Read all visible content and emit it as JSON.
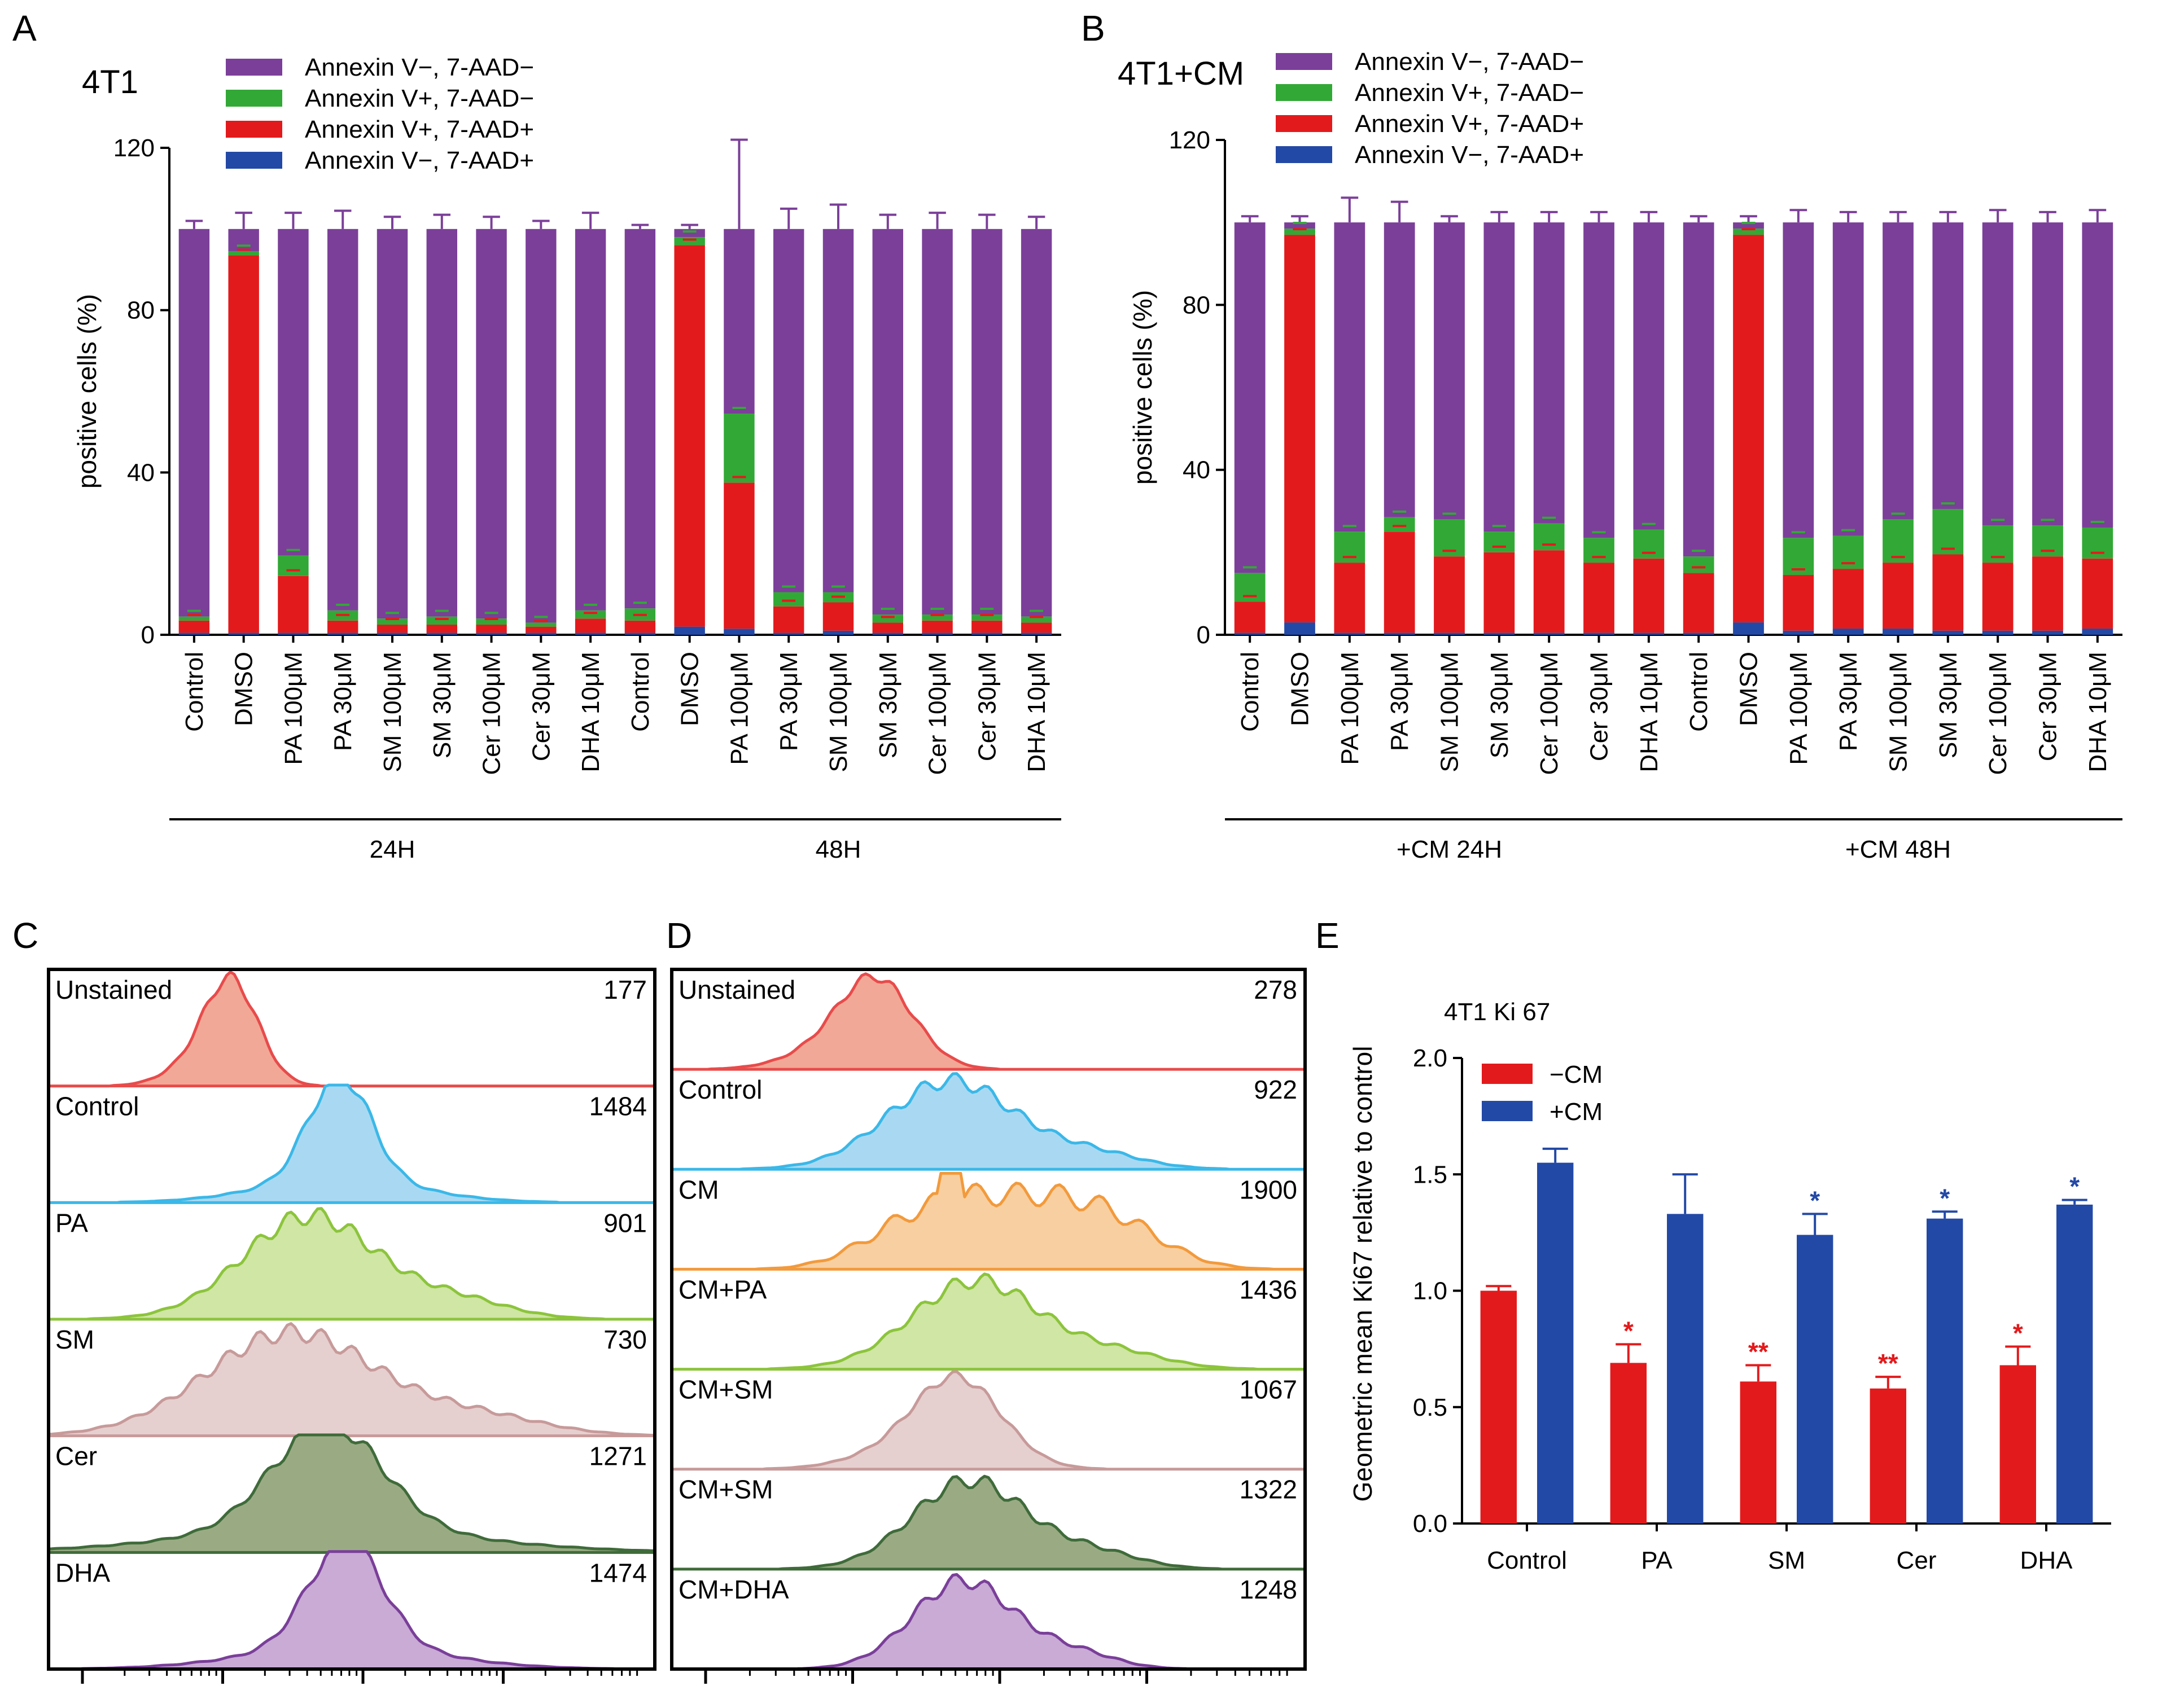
{
  "colors": {
    "live": "#7b3f99",
    "early": "#32a836",
    "late": "#e31a1c",
    "necrotic": "#2349a6",
    "minus_cm": "#e31a1c",
    "plus_cm": "#2349a6"
  },
  "panel_a": {
    "letter": "A",
    "title": "4T1"
  },
  "panel_b": {
    "letter": "B",
    "title": "4T1+CM"
  },
  "panel_c": {
    "letter": "C"
  },
  "panel_d": {
    "letter": "D"
  },
  "panel_e": {
    "letter": "E",
    "title": "4T1 Ki 67"
  },
  "chart_data": [
    {
      "id": "A",
      "type": "bar",
      "stacked": true,
      "title": "4T1",
      "ylabel": "positive cells (%)",
      "ylim": [
        0,
        120
      ],
      "yticks": [
        0,
        40,
        80,
        120
      ],
      "legend_position": "top",
      "legend": [
        "Annexin V−, 7-AAD−",
        "Annexin V+, 7-AAD−",
        "Annexin V+, 7-AAD+",
        "Annexin V−, 7-AAD+"
      ],
      "categories": [
        "Control",
        "DMSO",
        "PA 100μM",
        "PA 30μM",
        "SM 100μM",
        "SM 30μM",
        "Cer 100μM",
        "Cer 30μM",
        "DHA 10μM",
        "Control",
        "DMSO",
        "PA 100μM",
        "PA 30μM",
        "SM 100μM",
        "SM 30μM",
        "Cer 100μM",
        "Cer 30μM",
        "DHA 10μM"
      ],
      "groups": [
        {
          "label": "24H",
          "start": 0,
          "end": 8
        },
        {
          "label": "48H",
          "start": 9,
          "end": 17
        }
      ],
      "series": [
        {
          "name": "Annexin V−, 7-AAD+",
          "values": [
            0.5,
            0.5,
            0.5,
            0.5,
            0.5,
            0.5,
            0.5,
            0.5,
            0.5,
            0.5,
            2,
            1.5,
            0.5,
            1,
            0.5,
            0.5,
            0.5,
            0.5
          ]
        },
        {
          "name": "Annexin V+, 7-AAD+",
          "values": [
            3,
            93,
            14,
            3,
            2,
            2,
            2,
            1.5,
            3.5,
            3,
            94,
            36,
            6.5,
            7,
            2.5,
            3,
            3,
            2.5
          ]
        },
        {
          "name": "Annexin V+, 7-AAD−",
          "values": [
            1,
            1,
            5,
            2.5,
            1.5,
            2,
            1.5,
            1,
            2,
            3,
            2,
            17,
            3.5,
            2.5,
            2,
            1.5,
            1.5,
            1.5
          ]
        },
        {
          "name": "Annexin V−, 7-AAD−",
          "values": [
            95.5,
            5.5,
            80.5,
            94,
            96,
            95.5,
            96,
            97,
            94,
            93.5,
            2,
            45.5,
            89.5,
            89.5,
            95,
            95,
            95,
            95.5
          ]
        }
      ],
      "total_error": [
        2,
        4,
        4,
        4.5,
        3,
        3.5,
        3,
        2,
        4,
        1,
        1,
        22,
        5,
        6,
        3.5,
        4,
        3.5,
        3
      ]
    },
    {
      "id": "B",
      "type": "bar",
      "stacked": true,
      "title": "4T1+CM",
      "ylabel": "positive cells (%)",
      "ylim": [
        0,
        120
      ],
      "yticks": [
        0,
        40,
        80,
        120
      ],
      "legend_position": "top",
      "legend": [
        "Annexin V−, 7-AAD−",
        "Annexin V+, 7-AAD−",
        "Annexin V+, 7-AAD+",
        "Annexin V−, 7-AAD+"
      ],
      "categories": [
        "Control",
        "DMSO",
        "PA 100μM",
        "PA 30μM",
        "SM 100μM",
        "SM 30μM",
        "Cer 100μM",
        "Cer 30μM",
        "DHA 10μM",
        "Control",
        "DMSO",
        "PA 100μM",
        "PA 30μM",
        "SM 100μM",
        "SM 30μM",
        "Cer 100μM",
        "Cer 30μM",
        "DHA 10μM"
      ],
      "groups": [
        {
          "label": "+CM 24H",
          "start": 0,
          "end": 8
        },
        {
          "label": "+CM 48H",
          "start": 9,
          "end": 17
        }
      ],
      "series": [
        {
          "name": "Annexin V−, 7-AAD+",
          "values": [
            0.5,
            3,
            0.5,
            0.5,
            0.5,
            0.5,
            0.5,
            0.5,
            0.5,
            0.5,
            3,
            1,
            1.5,
            1.5,
            1,
            1,
            1,
            1.5
          ]
        },
        {
          "name": "Annexin V+, 7-AAD+",
          "values": [
            7.5,
            94,
            17,
            24.5,
            18.5,
            19.5,
            20,
            17,
            18,
            14.5,
            94,
            13.5,
            14.5,
            16,
            18.5,
            16.5,
            18,
            17
          ]
        },
        {
          "name": "Annexin V+, 7-AAD−",
          "values": [
            7,
            1.5,
            7.5,
            3.5,
            9,
            5,
            6.5,
            6,
            7,
            4,
            1.5,
            9,
            8,
            10.5,
            11,
            9,
            7.5,
            7.5
          ]
        },
        {
          "name": "Annexin V−, 7-AAD−",
          "values": [
            85,
            1.5,
            75,
            71.5,
            72,
            75,
            73,
            76.5,
            74.5,
            81,
            1.5,
            76.5,
            76,
            72,
            69.5,
            73.5,
            73.5,
            74
          ]
        }
      ],
      "total_error": [
        1.5,
        1.5,
        6,
        5,
        1.5,
        2.5,
        2.5,
        2.5,
        2.5,
        1.5,
        1.5,
        3,
        2.5,
        2.5,
        2.5,
        3,
        2.5,
        3
      ]
    },
    {
      "id": "E",
      "type": "bar",
      "title": "4T1 Ki 67",
      "ylabel": "Geometric mean Ki67 relative to control",
      "ylim": [
        0,
        2.0
      ],
      "yticks": [
        "0.0",
        "0.5",
        "1.0",
        "1.5",
        "2.0"
      ],
      "legend_position": "top-left",
      "categories": [
        "Control",
        "PA",
        "SM",
        "Cer",
        "DHA"
      ],
      "series": [
        {
          "name": "−CM",
          "values": [
            1.0,
            0.69,
            0.61,
            0.58,
            0.68
          ],
          "errors": [
            0.02,
            0.08,
            0.07,
            0.05,
            0.08
          ],
          "sig": [
            "",
            "*",
            "**",
            "**",
            "*"
          ]
        },
        {
          "name": "+CM",
          "values": [
            1.55,
            1.33,
            1.24,
            1.31,
            1.37
          ],
          "errors": [
            0.06,
            0.17,
            0.09,
            0.03,
            0.02
          ],
          "sig": [
            "",
            "",
            "*",
            "*",
            "*"
          ]
        }
      ]
    }
  ],
  "histograms_c": [
    {
      "label": "Unstained",
      "value": "177",
      "color": "#e84b4b",
      "fill": "#f2a896",
      "peak": 0.3,
      "width": 0.045,
      "shape": "narrow"
    },
    {
      "label": "Control",
      "value": "1484",
      "color": "#3ab8e8",
      "fill": "#a9d9f2",
      "peak": 0.48,
      "width": 0.05,
      "shape": "sharp"
    },
    {
      "label": "PA",
      "value": "901",
      "color": "#8cc43c",
      "fill": "#cfe6a4",
      "peak": 0.43,
      "width": 0.11,
      "shape": "broad"
    },
    {
      "label": "SM",
      "value": "730",
      "color": "#c79a9a",
      "fill": "#e6cfcf",
      "peak": 0.4,
      "width": 0.14,
      "shape": "broad"
    },
    {
      "label": "Cer",
      "value": "1271",
      "color": "#3f6b3a",
      "fill": "#9aab84",
      "peak": 0.46,
      "width": 0.09,
      "shape": "sharp"
    },
    {
      "label": "DHA",
      "value": "1474",
      "color": "#7a3f99",
      "fill": "#c9abd6",
      "peak": 0.49,
      "width": 0.06,
      "shape": "sharp"
    }
  ],
  "histograms_d": [
    {
      "label": "Unstained",
      "value": "278",
      "color": "#e84b4b",
      "fill": "#f2a896",
      "peak": 0.32,
      "width": 0.06,
      "shape": "narrow"
    },
    {
      "label": "Control",
      "value": "922",
      "color": "#3ab8e8",
      "fill": "#a9d9f2",
      "peak": 0.44,
      "width": 0.1,
      "shape": "broad"
    },
    {
      "label": "CM",
      "value": "1900",
      "color": "#f29a3c",
      "fill": "#f8cfa0",
      "peak": 0.54,
      "width": 0.15,
      "shape": "plateau"
    },
    {
      "label": "CM+PA",
      "value": "1436",
      "color": "#8cc43c",
      "fill": "#cfe6a4",
      "peak": 0.48,
      "width": 0.1,
      "shape": "broad"
    },
    {
      "label": "CM+SM",
      "value": "1067",
      "color": "#c79a9a",
      "fill": "#e6cfcf",
      "peak": 0.45,
      "width": 0.07,
      "shape": "narrow"
    },
    {
      "label": "CM+SM",
      "value": "1322",
      "color": "#3f6b3a",
      "fill": "#9aab84",
      "peak": 0.47,
      "width": 0.09,
      "shape": "broad"
    },
    {
      "label": "CM+DHA",
      "value": "1248",
      "color": "#7a3f99",
      "fill": "#c9abd6",
      "peak": 0.46,
      "width": 0.08,
      "shape": "broad"
    }
  ]
}
